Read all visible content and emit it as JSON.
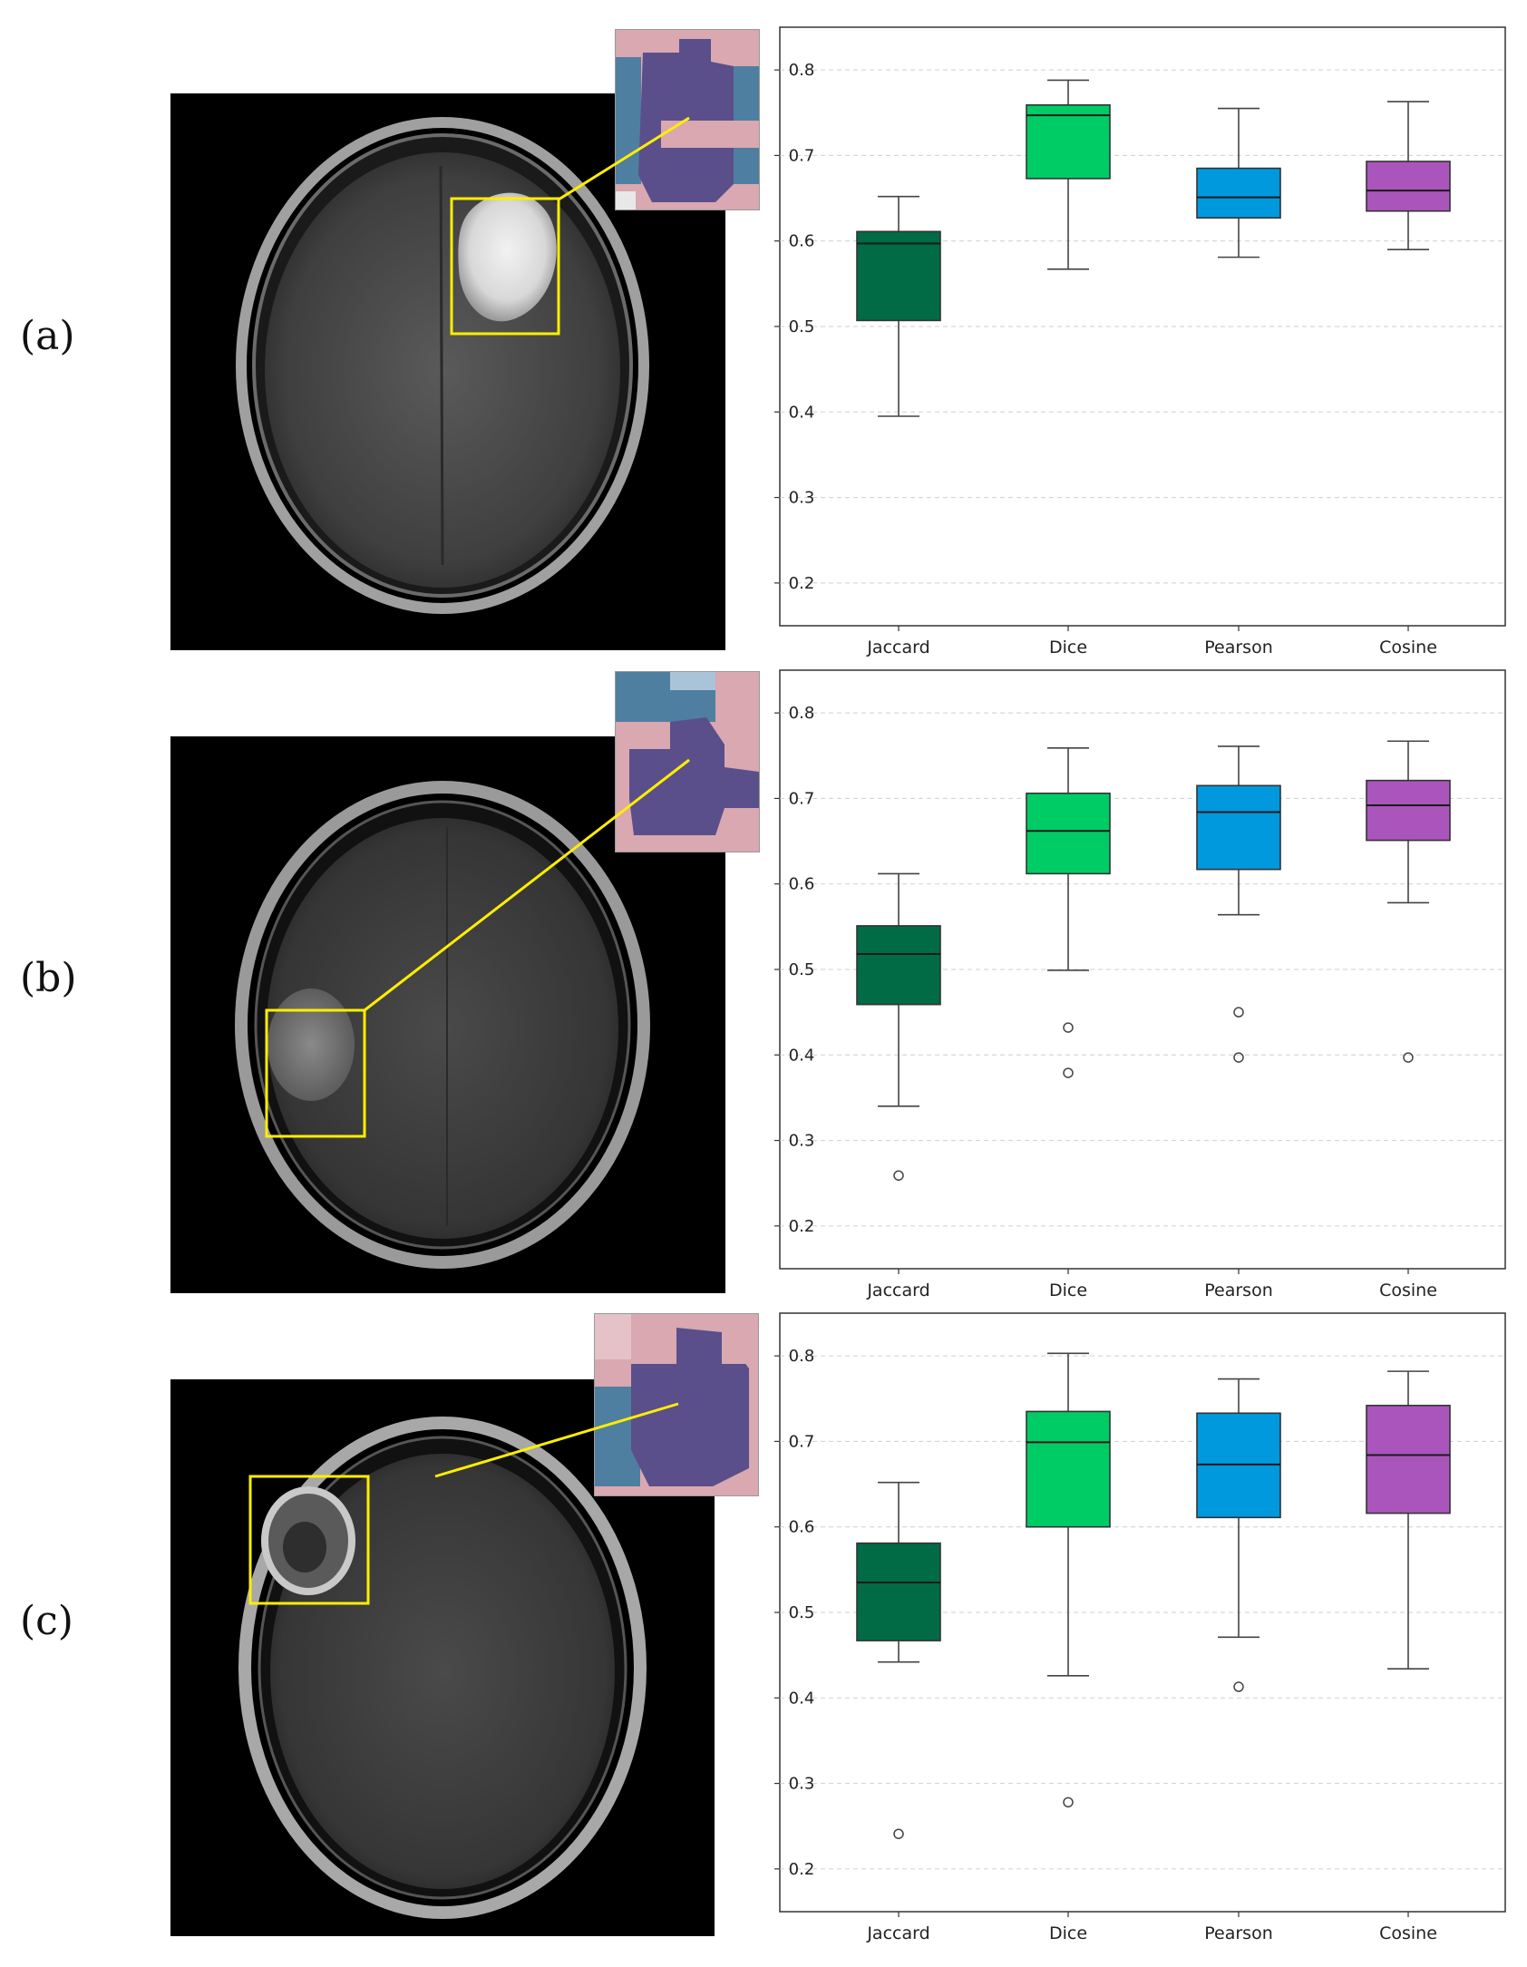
{
  "panels": [
    {
      "label": "(a)"
    },
    {
      "label": "(b)"
    },
    {
      "label": "(c)"
    }
  ],
  "colors": {
    "jaccard": "#006b45",
    "dice": "#00cc66",
    "pearson": "#0099dd",
    "cosine": "#aa55bb",
    "highlight_box": "#ffee00",
    "inset_purple": "#5a4f8a",
    "inset_pink": "#d9a8b0",
    "inset_blue": "#4f7fa0"
  },
  "chart_data": [
    {
      "type": "box",
      "categories": [
        "Jaccard",
        "Dice",
        "Pearson",
        "Cosine"
      ],
      "yticks": [
        "0.2",
        "0.3",
        "0.4",
        "0.5",
        "0.6",
        "0.7",
        "0.8"
      ],
      "ylim": [
        0.15,
        0.85
      ],
      "grid": "horizontal-dashed",
      "series": [
        {
          "min": 0.395,
          "q1": 0.507,
          "median": 0.597,
          "q3": 0.611,
          "max": 0.652,
          "outliers": []
        },
        {
          "min": 0.567,
          "q1": 0.673,
          "median": 0.747,
          "q3": 0.759,
          "max": 0.788,
          "outliers": []
        },
        {
          "min": 0.581,
          "q1": 0.627,
          "median": 0.651,
          "q3": 0.685,
          "max": 0.755,
          "outliers": []
        },
        {
          "min": 0.59,
          "q1": 0.635,
          "median": 0.659,
          "q3": 0.693,
          "max": 0.763,
          "outliers": []
        }
      ]
    },
    {
      "type": "box",
      "categories": [
        "Jaccard",
        "Dice",
        "Pearson",
        "Cosine"
      ],
      "yticks": [
        "0.2",
        "0.3",
        "0.4",
        "0.5",
        "0.6",
        "0.7",
        "0.8"
      ],
      "ylim": [
        0.15,
        0.85
      ],
      "grid": "horizontal-dashed",
      "series": [
        {
          "min": 0.34,
          "q1": 0.459,
          "median": 0.518,
          "q3": 0.551,
          "max": 0.612,
          "outliers": [
            0.259
          ]
        },
        {
          "min": 0.499,
          "q1": 0.612,
          "median": 0.662,
          "q3": 0.706,
          "max": 0.759,
          "outliers": [
            0.432,
            0.379
          ]
        },
        {
          "min": 0.564,
          "q1": 0.617,
          "median": 0.684,
          "q3": 0.715,
          "max": 0.761,
          "outliers": [
            0.45,
            0.397
          ]
        },
        {
          "min": 0.578,
          "q1": 0.651,
          "median": 0.692,
          "q3": 0.721,
          "max": 0.767,
          "outliers": [
            0.397
          ]
        }
      ]
    },
    {
      "type": "box",
      "categories": [
        "Jaccard",
        "Dice",
        "Pearson",
        "Cosine"
      ],
      "yticks": [
        "0.2",
        "0.3",
        "0.4",
        "0.5",
        "0.6",
        "0.7",
        "0.8"
      ],
      "ylim": [
        0.15,
        0.85
      ],
      "grid": "horizontal-dashed",
      "series": [
        {
          "min": 0.442,
          "q1": 0.467,
          "median": 0.535,
          "q3": 0.581,
          "max": 0.652,
          "outliers": [
            0.241
          ]
        },
        {
          "min": 0.426,
          "q1": 0.6,
          "median": 0.699,
          "q3": 0.735,
          "max": 0.803,
          "outliers": [
            0.278
          ]
        },
        {
          "min": 0.471,
          "q1": 0.611,
          "median": 0.673,
          "q3": 0.733,
          "max": 0.773,
          "outliers": [
            0.413
          ]
        },
        {
          "min": 0.434,
          "q1": 0.616,
          "median": 0.684,
          "q3": 0.742,
          "max": 0.782,
          "outliers": []
        }
      ]
    }
  ]
}
